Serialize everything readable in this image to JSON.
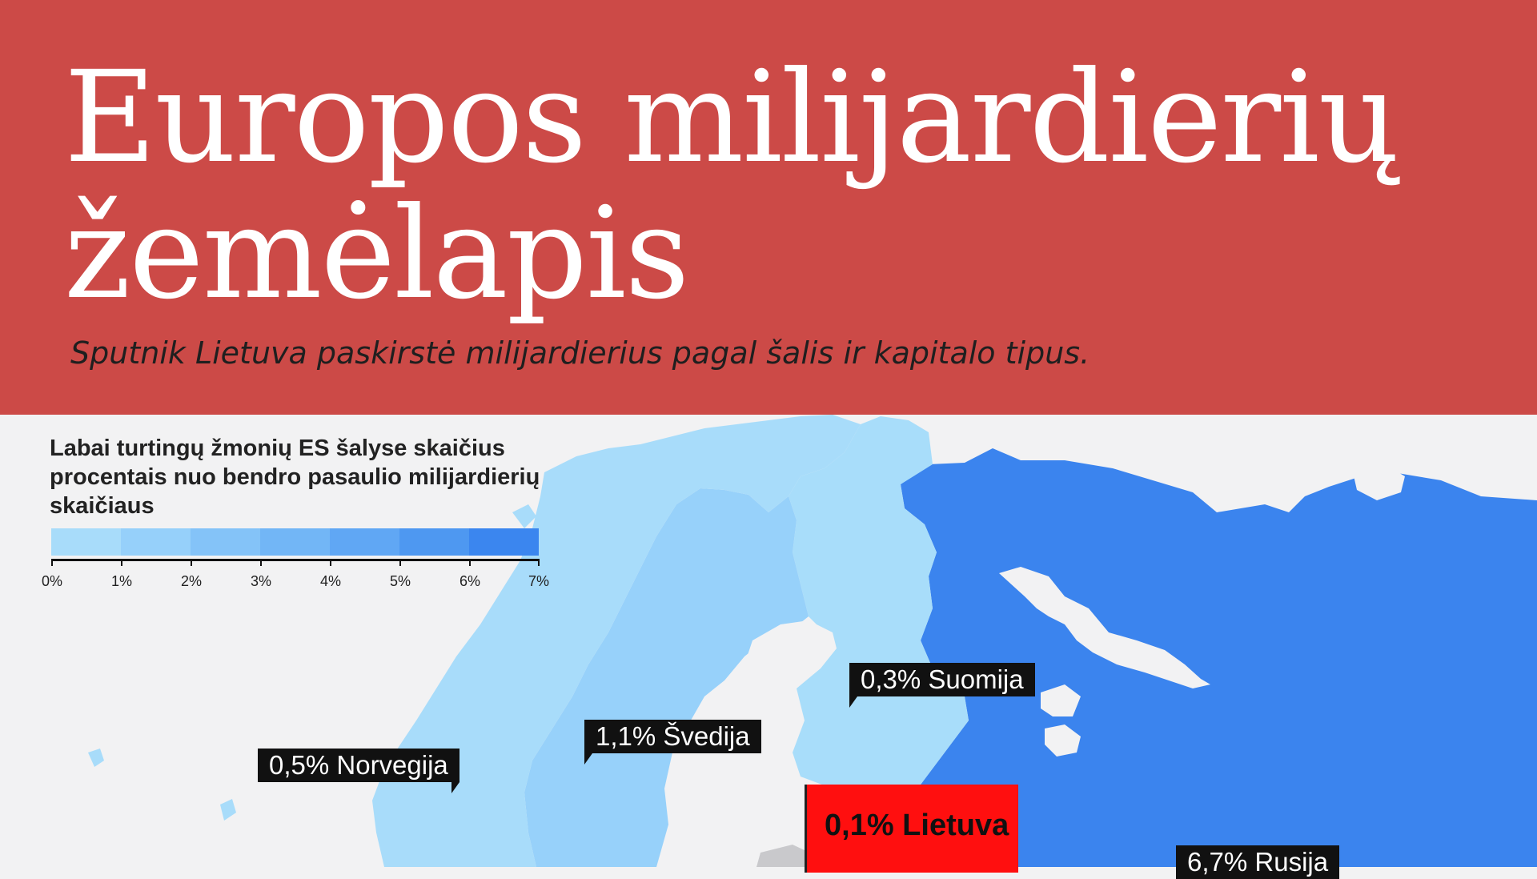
{
  "header": {
    "title": "Europos milijardierių žemėlapis",
    "subtitle": "Sputnik Lietuva paskirstė milijardierius pagal šalis ir kapitalo tipus."
  },
  "legend": {
    "title": "Labai turtingų žmonių  ES šalyse skaičius procentais nuo bendro pasaulio milijardierių skaičiaus",
    "ticks": [
      "0%",
      "1%",
      "2%",
      "3%",
      "4%",
      "5%",
      "6%",
      "7%"
    ],
    "colors": [
      "#a8dcfa",
      "#96d0fa",
      "#84c3f8",
      "#72b6f6",
      "#60a7f4",
      "#4e98f1",
      "#3b86ef"
    ]
  },
  "countries": [
    {
      "name": "Norvegija",
      "label": "0,5% Norvegija",
      "value": 0.5
    },
    {
      "name": "Švedija",
      "label": "1,1% Švedija",
      "value": 1.1
    },
    {
      "name": "Suomija",
      "label": "0,3% Suomija",
      "value": 0.3
    },
    {
      "name": "Lietuva",
      "label": "0,1% Lietuva",
      "value": 0.1
    },
    {
      "name": "Rusija",
      "label": "6,7% Rusija",
      "value": 6.7
    }
  ],
  "colors": {
    "header_bg": "#cc4a47",
    "page_bg": "#f2f2f3",
    "russia": "#3b84ee",
    "highlight": "#ff0f0f",
    "label_bg": "#111111"
  }
}
